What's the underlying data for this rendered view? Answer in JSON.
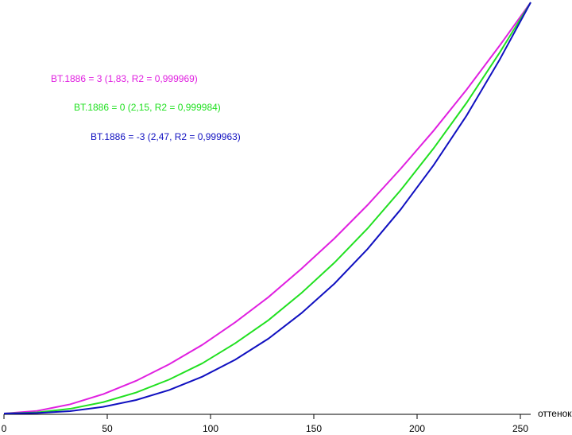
{
  "chart_data": {
    "type": "line",
    "x_label": "оттенок",
    "x": [
      0,
      16,
      32,
      48,
      64,
      80,
      96,
      112,
      128,
      144,
      160,
      176,
      192,
      208,
      224,
      240,
      255
    ],
    "xlim": [
      0,
      255
    ],
    "xticks": [
      0,
      50,
      100,
      150,
      200,
      250
    ],
    "ylim": [
      0,
      1
    ],
    "series": [
      {
        "name": "BT.1886 = 3 (1,83, R2 = 0,999969)",
        "color": "#e020e0",
        "values": [
          0,
          0.0063,
          0.0224,
          0.0471,
          0.0796,
          0.12,
          0.167,
          0.222,
          0.283,
          0.352,
          0.426,
          0.507,
          0.595,
          0.688,
          0.788,
          0.895,
          1
        ]
      },
      {
        "name": "BT.1886 = 0 (2,15, R2 = 0,999984)",
        "color": "#20e020",
        "values": [
          0,
          0.0026,
          0.0115,
          0.0276,
          0.0511,
          0.0827,
          0.122,
          0.171,
          0.227,
          0.293,
          0.367,
          0.45,
          0.543,
          0.645,
          0.756,
          0.878,
          1
        ]
      },
      {
        "name": "BT.1886 = -3 (2,47, R2 = 0,999963)",
        "color": "#1010c0",
        "values": [
          0,
          0.0011,
          0.0059,
          0.0162,
          0.0329,
          0.0571,
          0.0896,
          0.131,
          0.182,
          0.244,
          0.316,
          0.4,
          0.496,
          0.604,
          0.725,
          0.861,
          1
        ]
      }
    ]
  }
}
